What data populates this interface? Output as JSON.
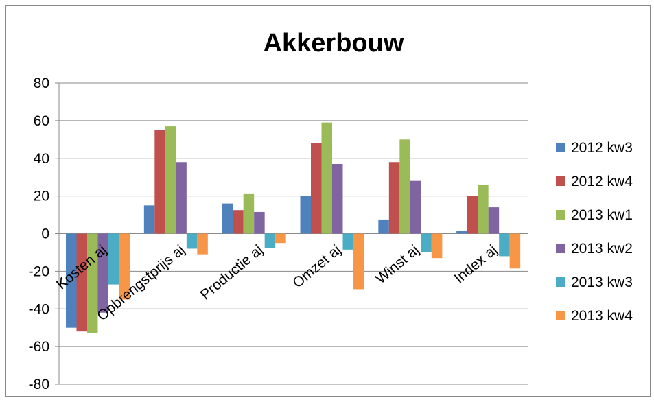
{
  "chart_data": {
    "type": "bar",
    "title": "Akkerbouw",
    "xlabel": "",
    "ylabel": "",
    "ylim": [
      -80,
      80
    ],
    "yticks": [
      80,
      60,
      40,
      20,
      0,
      -20,
      -40,
      -60,
      -80
    ],
    "grid": true,
    "legend_position": "right",
    "categories": [
      "Kosten aj",
      "Opbrengstprijs aj",
      "Productie aj",
      "Omzet aj",
      "Winst aj",
      "Index aj"
    ],
    "series": [
      {
        "name": "2012 kw3",
        "color": "#4F81BD",
        "values": [
          -50,
          15,
          16,
          20,
          7.5,
          1.5
        ]
      },
      {
        "name": "2012 kw4",
        "color": "#C0504D",
        "values": [
          -52,
          55,
          12.5,
          48,
          38,
          20
        ]
      },
      {
        "name": "2013 kw1",
        "color": "#9BBB59",
        "values": [
          -53,
          57,
          21,
          59,
          50,
          26
        ]
      },
      {
        "name": "2013 kw2",
        "color": "#8064A2",
        "values": [
          -42,
          38,
          11.5,
          37,
          28,
          14
        ]
      },
      {
        "name": "2013 kw3",
        "color": "#4BACC6",
        "values": [
          -27,
          -8,
          -7.5,
          -8.5,
          -10,
          -12
        ]
      },
      {
        "name": "2013 kw4",
        "color": "#F79646",
        "values": [
          -35,
          -11,
          -5,
          -29.5,
          -13,
          -18.5
        ]
      }
    ]
  }
}
